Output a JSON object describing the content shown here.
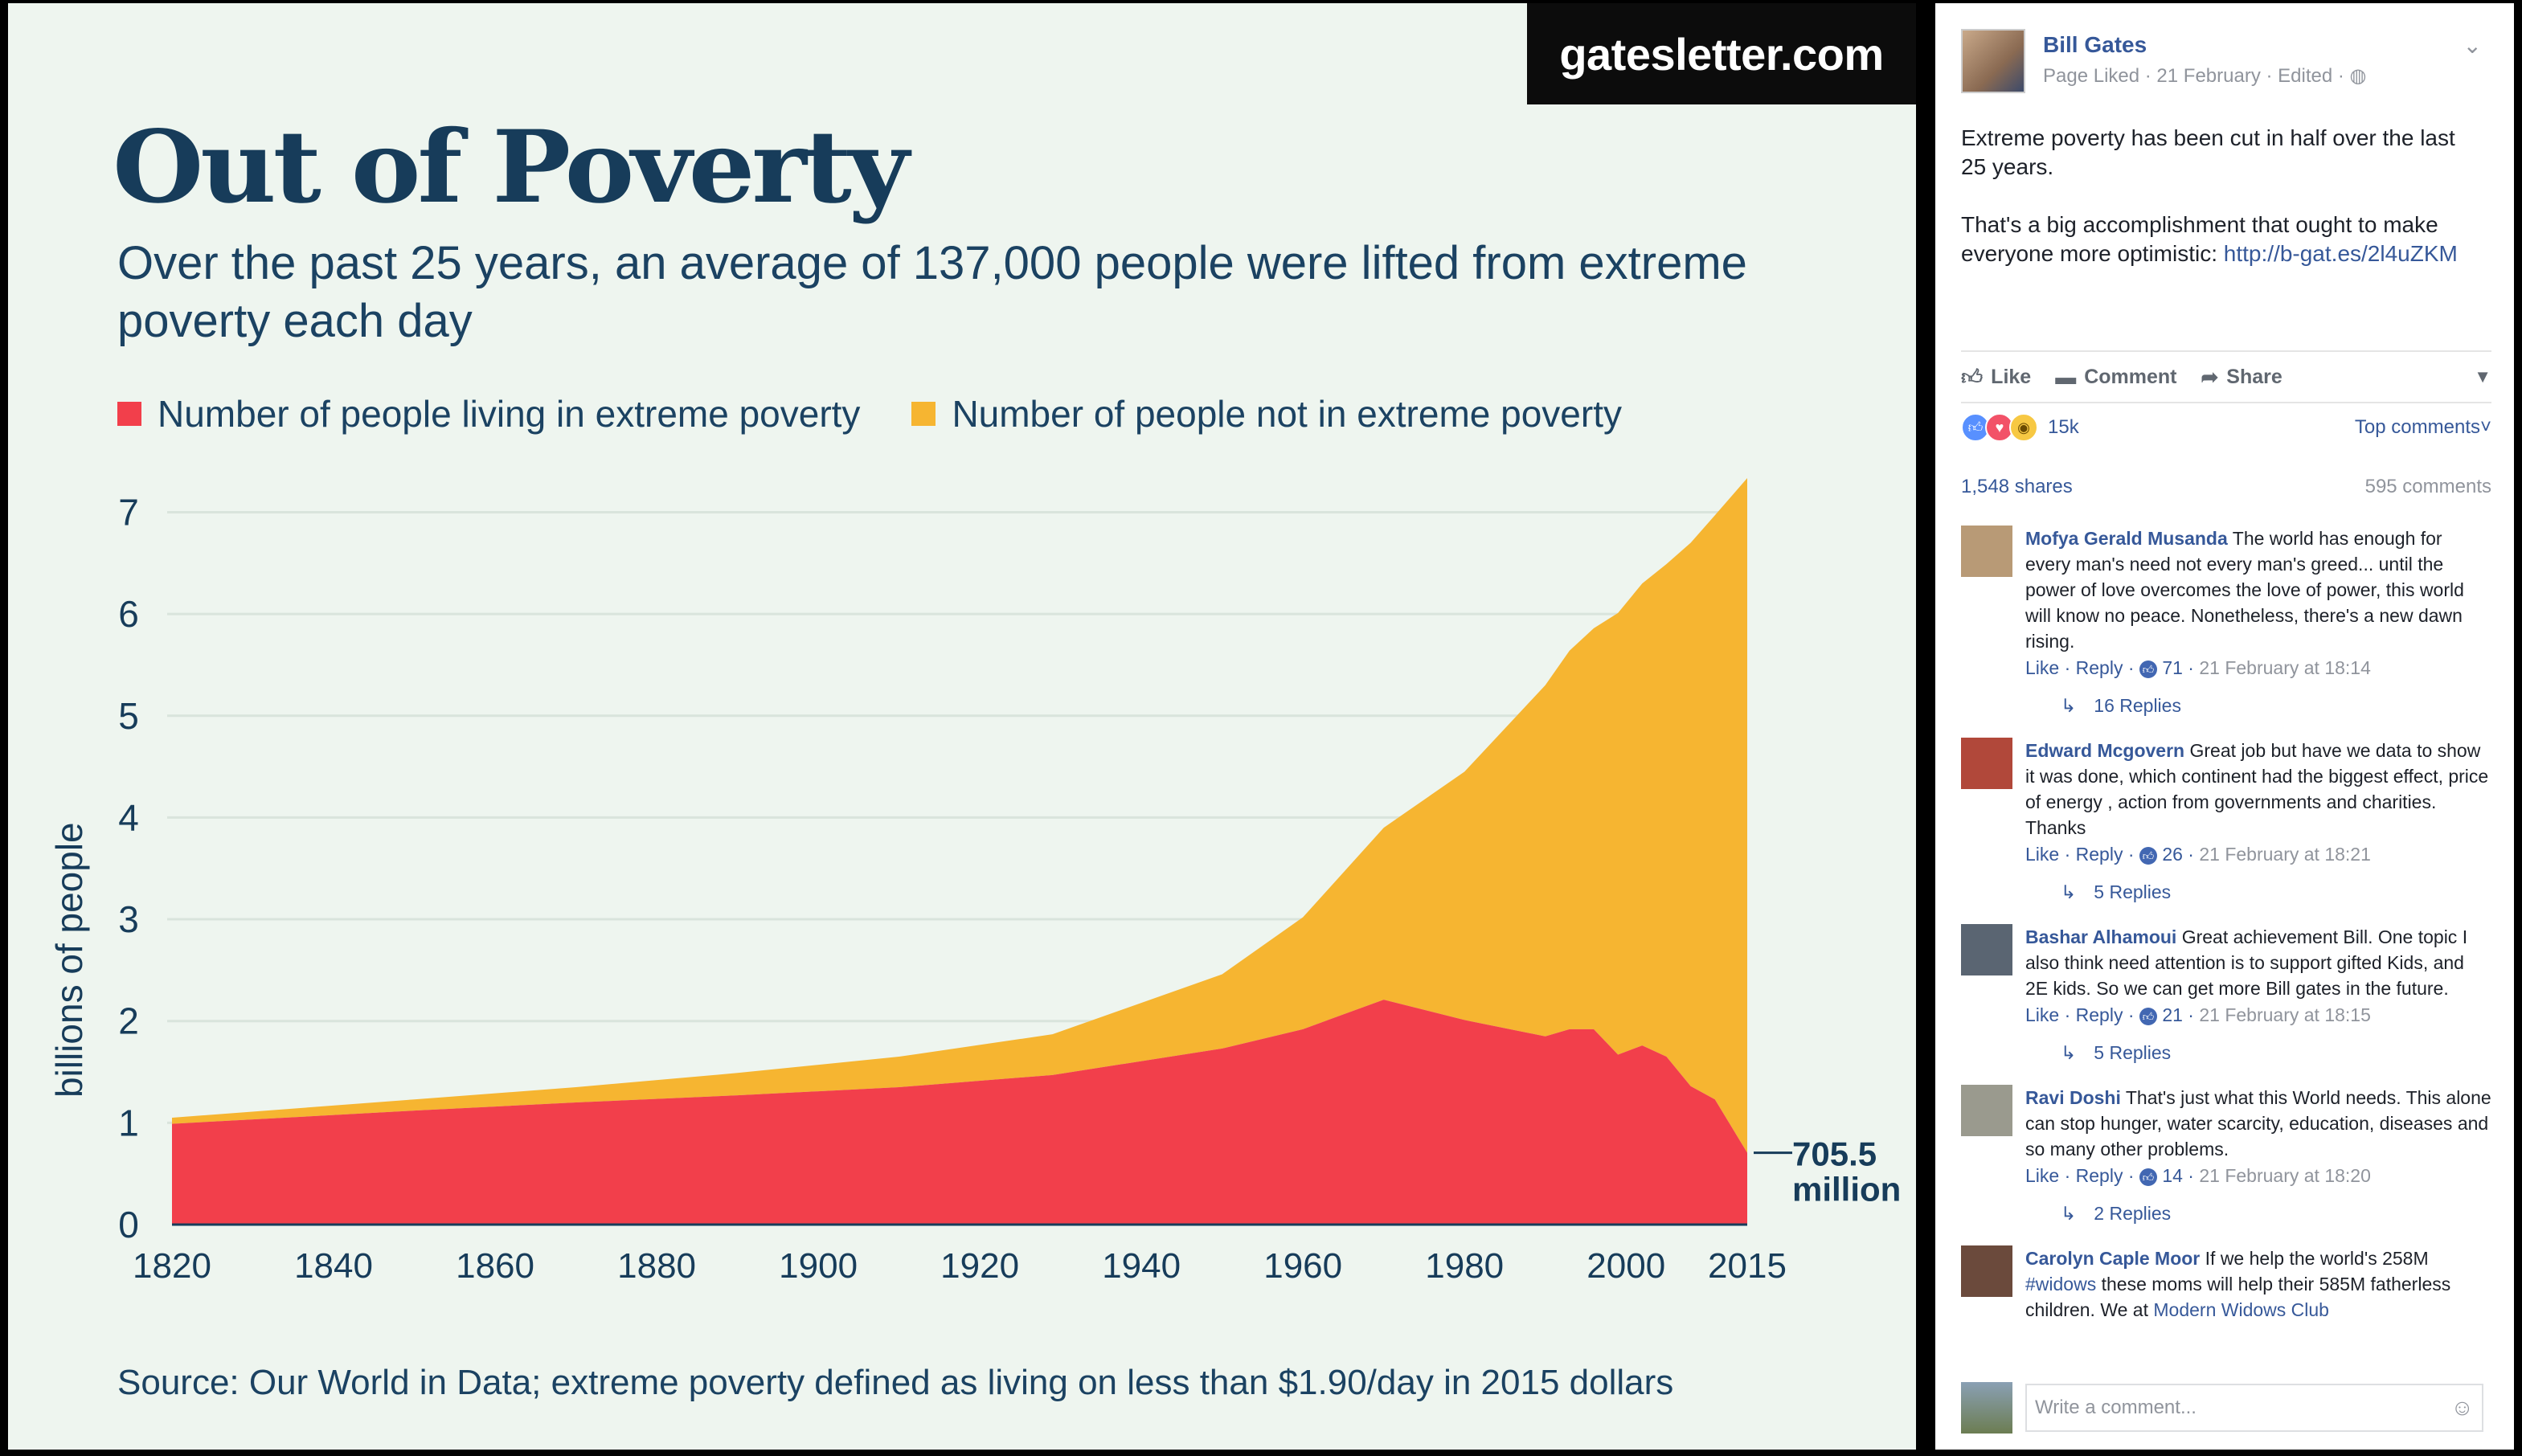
{
  "infographic": {
    "site": "gatesletter.com",
    "title": "Out of Poverty",
    "subtitle": "Over the past 25 years, an average of 137,000 people were lifted from extreme poverty each day",
    "legend": [
      {
        "label": "Number of people living in extreme poverty",
        "color": "#f23f4b"
      },
      {
        "label": "Number of people not in extreme poverty",
        "color": "#f6b531"
      }
    ],
    "source": "Source: Our World in Data; extreme poverty defined as living on less than $1.90/day in 2015 dollars",
    "annotation": {
      "line1": "705.5",
      "line2": "million"
    }
  },
  "chart_data": {
    "type": "area",
    "stacked": true,
    "title": "Out of Poverty",
    "ylabel": "billions of people",
    "xlabel": "",
    "x": [
      1820,
      1850,
      1870,
      1890,
      1910,
      1929,
      1950,
      1960,
      1970,
      1980,
      1990,
      1993,
      1996,
      1999,
      2002,
      2005,
      2008,
      2011,
      2015
    ],
    "series": [
      {
        "name": "Number of people living in extreme poverty",
        "color": "#f23f4b",
        "values": [
          0.99,
          1.12,
          1.2,
          1.27,
          1.35,
          1.47,
          1.73,
          1.92,
          2.21,
          2.01,
          1.85,
          1.92,
          1.92,
          1.67,
          1.76,
          1.65,
          1.36,
          1.23,
          0.7055
        ]
      },
      {
        "name": "Number of people not in extreme poverty",
        "color": "#f6b531",
        "values": [
          0.06,
          0.11,
          0.15,
          0.22,
          0.3,
          0.4,
          0.73,
          1.1,
          1.69,
          2.44,
          3.45,
          3.72,
          3.94,
          4.34,
          4.54,
          4.84,
          5.34,
          5.74,
          6.63
        ]
      }
    ],
    "xticks": [
      1820,
      1840,
      1860,
      1880,
      1900,
      1920,
      1940,
      1960,
      1980,
      2000,
      2015
    ],
    "yticks": [
      0,
      1,
      2,
      3,
      4,
      5,
      6,
      7
    ],
    "xlim": [
      1820,
      2015
    ],
    "ylim": [
      0,
      7
    ],
    "grid": true
  },
  "post": {
    "author": "Bill Gates",
    "meta": "Page Liked · 21 February · Edited ·",
    "text_p1": "Extreme poverty has been cut in half over the last 25 years.",
    "text_p2": "That's a big accomplishment that ought to make everyone more optimistic: ",
    "link": "http://b-gat.es/2l4uZKM",
    "actions": {
      "like": "Like",
      "comment": "Comment",
      "share": "Share"
    },
    "reactions": {
      "count": "15k",
      "icons": [
        "like-icon",
        "love-icon",
        "wow-icon"
      ]
    },
    "top_comments_label": "Top comments",
    "shares": "1,548 shares",
    "comments_count": "595 comments",
    "comment_placeholder": "Write a comment..."
  },
  "comments": [
    {
      "author": "Mofya Gerald Musanda",
      "text": "The world has enough for every man's need not every man's greed... until the power of love overcomes the love of power, this world will know no peace. Nonetheless, there's a new dawn rising.",
      "likes": "71",
      "time": "21 February at 18:14",
      "replies": "16 Replies",
      "avatar": "#b89a76"
    },
    {
      "author": "Edward Mcgovern",
      "text": "Great job but have we data to show it was done, which continent had the biggest effect, price of energy , action from governments and charities. Thanks",
      "likes": "26",
      "time": "21 February at 18:21",
      "replies": "5 Replies",
      "avatar": "#b1483a"
    },
    {
      "author": "Bashar Alhamoui",
      "text": "Great achievement Bill. One topic I also think need attention is to support gifted Kids, and 2E kids. So we can get more Bill gates in the future.",
      "likes": "21",
      "time": "21 February at 18:15",
      "replies": "5 Replies",
      "avatar": "#5a6572"
    },
    {
      "author": "Ravi Doshi",
      "text": "That's just what this World needs. This alone can stop hunger, water scarcity, education, diseases and so many other problems.",
      "likes": "14",
      "time": "21 February at 18:20",
      "replies": "2 Replies",
      "avatar": "#9a9a8e"
    },
    {
      "author": "Carolyn Caple Moor",
      "text_before": "If we help the world's 258M ",
      "hashtag": "#widows",
      "text_after": " these moms will help their 585M fatherless children. We at ",
      "link": "Modern Widows Club",
      "avatar": "#6b4a3c"
    }
  ],
  "common": {
    "like": "Like",
    "reply": "Reply"
  }
}
